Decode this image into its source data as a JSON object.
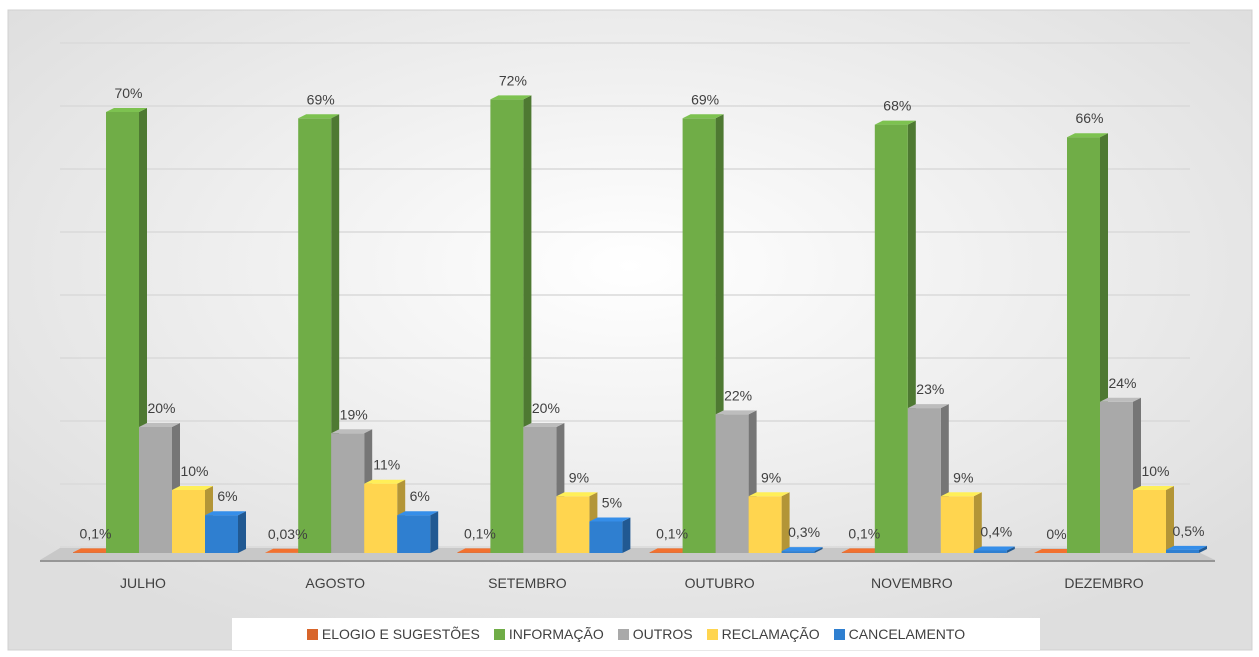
{
  "chart_data": {
    "type": "bar3d",
    "categories": [
      "JULHO",
      "AGOSTO",
      "SETEMBRO",
      "OUTUBRO",
      "NOVEMBRO",
      "DEZEMBRO"
    ],
    "series": [
      {
        "name": "ELOGIO E SUGESTÕES",
        "color": "#d8652a",
        "values": [
          0.1,
          0.03,
          0.1,
          0.1,
          0.1,
          0
        ],
        "value_labels": [
          "0,1%",
          "0,03%",
          "0,1%",
          "0,1%",
          "0,1%",
          "0%"
        ]
      },
      {
        "name": "INFORMAÇÃO",
        "color": "#70ad47",
        "values": [
          70,
          69,
          72,
          69,
          68,
          66
        ],
        "value_labels": [
          "70%",
          "69%",
          "72%",
          "69%",
          "68%",
          "66%"
        ]
      },
      {
        "name": "OUTROS",
        "color": "#a9a9a9",
        "values": [
          20,
          19,
          20,
          22,
          23,
          24
        ],
        "value_labels": [
          "20%",
          "19%",
          "20%",
          "22%",
          "23%",
          "24%"
        ]
      },
      {
        "name": "RECLAMAÇÃO",
        "color": "#ffd54f",
        "values": [
          10,
          11,
          9,
          9,
          9,
          10
        ],
        "value_labels": [
          "10%",
          "11%",
          "9%",
          "9%",
          "9%",
          "10%"
        ]
      },
      {
        "name": "CANCELAMENTO",
        "color": "#2f7fd0",
        "values": [
          6,
          6,
          5,
          0.3,
          0.4,
          0.5
        ],
        "value_labels": [
          "6%",
          "6%",
          "5%",
          "0,3%",
          "0,4%",
          "0,5%"
        ]
      }
    ],
    "ylim": [
      0,
      80
    ],
    "yticks": [
      0,
      10,
      20,
      30,
      40,
      50,
      60,
      70,
      80
    ],
    "grid": true,
    "legend": "bottom"
  }
}
